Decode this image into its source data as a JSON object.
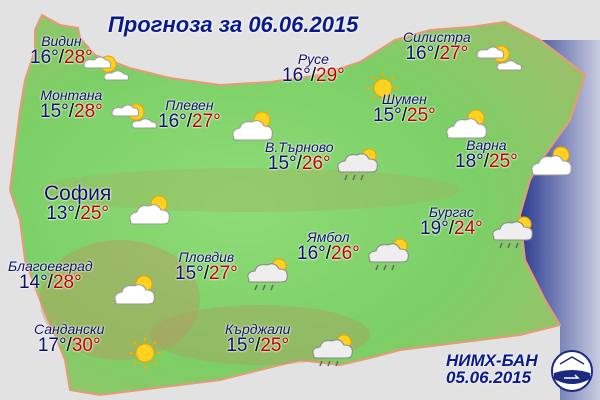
{
  "title": "Прогноза за 06.06.2015",
  "colors": {
    "min_temp": "#10106a",
    "max_temp": "#c00000",
    "land": "#7fd36a",
    "sea": "#4a5aa8",
    "background": "#e2e2e2"
  },
  "cities": [
    {
      "name": "Видин",
      "min": "16°",
      "max": "28°",
      "icon": "partly-cloudy-icon"
    },
    {
      "name": "Монтана",
      "min": "15°",
      "max": "28°",
      "icon": "partly-cloudy-icon"
    },
    {
      "name": "Плевен",
      "min": "16°",
      "max": "27°",
      "icon": "cloud-sun-icon"
    },
    {
      "name": "Русе",
      "min": "16°",
      "max": "29°",
      "icon": "sun-icon"
    },
    {
      "name": "Силистра",
      "min": "16°",
      "max": "27°",
      "icon": "partly-cloudy-icon"
    },
    {
      "name": "Шумен",
      "min": "15°",
      "max": "25°",
      "icon": "cloud-sun-icon"
    },
    {
      "name": "В.Търново",
      "min": "15°",
      "max": "26°",
      "icon": "rain-showers-icon"
    },
    {
      "name": "Варна",
      "min": "18°",
      "max": "25°",
      "icon": "cloud-sun-icon"
    },
    {
      "name": "София",
      "min": "13°",
      "max": "25°",
      "icon": "cloud-sun-icon"
    },
    {
      "name": "Бургас",
      "min": "19°",
      "max": "24°",
      "icon": "rain-showers-icon"
    },
    {
      "name": "Ямбол",
      "min": "16°",
      "max": "26°",
      "icon": "rain-showers-icon"
    },
    {
      "name": "Благоевград",
      "min": "14°",
      "max": "28°",
      "icon": "cloud-sun-icon"
    },
    {
      "name": "Пловдив",
      "min": "15°",
      "max": "27°",
      "icon": "rain-showers-icon"
    },
    {
      "name": "Сандански",
      "min": "17°",
      "max": "30°",
      "icon": "sun-icon"
    },
    {
      "name": "Кърджали",
      "min": "15°",
      "max": "25°",
      "icon": "rain-showers-icon"
    }
  ],
  "footer": {
    "org": "НИМХ-БАН",
    "issued": "05.06.2015"
  }
}
